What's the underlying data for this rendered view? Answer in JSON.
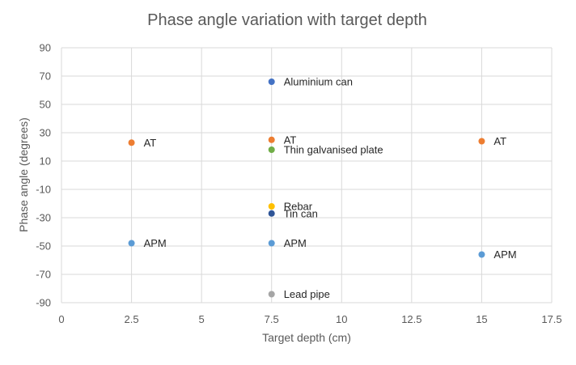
{
  "chart_data": {
    "type": "scatter",
    "title": "Phase angle variation with target depth",
    "xlabel": "Target depth (cm)",
    "ylabel": "Phase angle (degrees)",
    "xlim": [
      0,
      17.5
    ],
    "ylim": [
      -90,
      90
    ],
    "x_ticks": [
      0,
      2.5,
      5,
      7.5,
      10,
      12.5,
      15,
      17.5
    ],
    "x_tick_labels": [
      "0",
      "2.5",
      "5",
      "7.5",
      "10",
      "12.5",
      "15",
      "17.5"
    ],
    "y_ticks": [
      90,
      70,
      50,
      30,
      10,
      -10,
      -30,
      -50,
      -70,
      -90
    ],
    "y_tick_labels": [
      "90",
      "70",
      "50",
      "30",
      "10",
      "-10",
      "-30",
      "-50",
      "-70",
      "-90"
    ],
    "grid": true,
    "legend": "none",
    "points": [
      {
        "x": 7.5,
        "y": 66,
        "label": "Aluminium can",
        "color": "#4472c4"
      },
      {
        "x": 2.5,
        "y": 23,
        "label": "AT",
        "color": "#ed7d31"
      },
      {
        "x": 7.5,
        "y": 25,
        "label": "AT",
        "color": "#ed7d31"
      },
      {
        "x": 15,
        "y": 24,
        "label": "AT",
        "color": "#ed7d31"
      },
      {
        "x": 7.5,
        "y": 18,
        "label": "Thin galvanised plate",
        "color": "#70ad47"
      },
      {
        "x": 7.5,
        "y": -22,
        "label": "Rebar",
        "color": "#ffc000"
      },
      {
        "x": 7.5,
        "y": -27,
        "label": "Tin can",
        "color": "#2f5597"
      },
      {
        "x": 2.5,
        "y": -48,
        "label": "APM",
        "color": "#5b9bd5"
      },
      {
        "x": 7.5,
        "y": -48,
        "label": "APM",
        "color": "#5b9bd5"
      },
      {
        "x": 15,
        "y": -56,
        "label": "APM",
        "color": "#5b9bd5"
      },
      {
        "x": 7.5,
        "y": -84,
        "label": "Lead pipe",
        "color": "#a5a5a5"
      }
    ]
  }
}
